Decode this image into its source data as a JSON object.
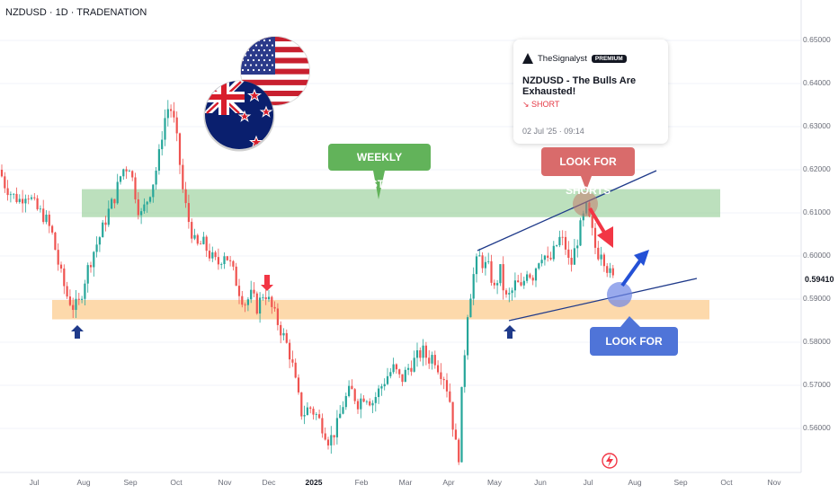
{
  "header": {
    "symbol_title": "NZDUSD · 1D · TRADENATION"
  },
  "idea_card": {
    "author": "TheSignalyst",
    "badge": "PREMIUM",
    "title": "NZDUSD - The Bulls Are Exhausted!",
    "direction": "↘ SHORT",
    "date": "02 Jul '25 · 09:14"
  },
  "annotations": {
    "weekly_resistance": "WEEKLY RESISTANCE",
    "look_for_shorts": "LOOK FOR SHORTS",
    "look_for_longs": "LOOK FOR LONGS"
  },
  "chart_data": {
    "type": "candlestick",
    "y_ticks": [
      "0.65000",
      "0.64000",
      "0.63000",
      "0.62000",
      "0.61000",
      "0.60000",
      "0.59000",
      "0.58000",
      "0.57000",
      "0.56000"
    ],
    "current_price": "0.59410",
    "x_labels": [
      "Jul",
      "Aug",
      "Sep",
      "Oct",
      "Nov",
      "Dec",
      "2025",
      "Feb",
      "Mar",
      "Apr",
      "May",
      "Jun",
      "Jul",
      "Aug",
      "Sep",
      "Oct",
      "Nov"
    ],
    "ylim": [
      0.551,
      0.652
    ],
    "resistance_zone": [
      0.609,
      0.6155
    ],
    "support_zone": [
      0.5853,
      0.5898
    ],
    "colors": {
      "up": "#26a69a",
      "down": "#ef5350",
      "resistance": "#a5d6a7",
      "support": "#fcd096",
      "trendline": "#1f3a8a"
    },
    "path": [
      [
        0,
        0.62
      ],
      [
        4,
        0.617
      ],
      [
        14,
        0.614
      ],
      [
        22,
        0.613
      ],
      [
        30,
        0.615
      ],
      [
        40,
        0.611
      ],
      [
        50,
        0.609
      ],
      [
        58,
        0.605
      ],
      [
        66,
        0.597
      ],
      [
        74,
        0.591
      ],
      [
        82,
        0.588
      ],
      [
        88,
        0.589
      ],
      [
        96,
        0.596
      ],
      [
        104,
        0.601
      ],
      [
        112,
        0.605
      ],
      [
        120,
        0.61
      ],
      [
        128,
        0.614
      ],
      [
        136,
        0.62
      ],
      [
        144,
        0.621
      ],
      [
        150,
        0.615
      ],
      [
        156,
        0.609
      ],
      [
        162,
        0.612
      ],
      [
        170,
        0.617
      ],
      [
        176,
        0.622
      ],
      [
        182,
        0.631
      ],
      [
        188,
        0.635
      ],
      [
        192,
        0.633
      ],
      [
        198,
        0.625
      ],
      [
        204,
        0.614
      ],
      [
        210,
        0.608
      ],
      [
        218,
        0.602
      ],
      [
        226,
        0.603
      ],
      [
        234,
        0.6
      ],
      [
        242,
        0.598
      ],
      [
        250,
        0.601
      ],
      [
        258,
        0.597
      ],
      [
        266,
        0.592
      ],
      [
        272,
        0.589
      ],
      [
        280,
        0.591
      ],
      [
        286,
        0.588
      ],
      [
        294,
        0.592
      ],
      [
        300,
        0.589
      ],
      [
        306,
        0.586
      ],
      [
        312,
        0.583
      ],
      [
        318,
        0.58
      ],
      [
        324,
        0.576
      ],
      [
        330,
        0.569
      ],
      [
        336,
        0.563
      ],
      [
        344,
        0.565
      ],
      [
        352,
        0.563
      ],
      [
        360,
        0.56
      ],
      [
        366,
        0.557
      ],
      [
        374,
        0.56
      ],
      [
        382,
        0.566
      ],
      [
        390,
        0.569
      ],
      [
        398,
        0.566
      ],
      [
        406,
        0.568
      ],
      [
        414,
        0.566
      ],
      [
        422,
        0.569
      ],
      [
        430,
        0.572
      ],
      [
        438,
        0.574
      ],
      [
        446,
        0.571
      ],
      [
        454,
        0.574
      ],
      [
        462,
        0.576
      ],
      [
        470,
        0.578
      ],
      [
        476,
        0.576
      ],
      [
        482,
        0.577
      ],
      [
        488,
        0.574
      ],
      [
        494,
        0.572
      ],
      [
        500,
        0.567
      ],
      [
        506,
        0.557
      ],
      [
        510,
        0.553
      ],
      [
        514,
        0.57
      ],
      [
        520,
        0.587
      ],
      [
        526,
        0.595
      ],
      [
        532,
        0.6
      ],
      [
        538,
        0.598
      ],
      [
        544,
        0.597
      ],
      [
        550,
        0.592
      ],
      [
        556,
        0.597
      ],
      [
        562,
        0.59
      ],
      [
        568,
        0.591
      ],
      [
        574,
        0.594
      ],
      [
        580,
        0.592
      ],
      [
        586,
        0.597
      ],
      [
        592,
        0.595
      ],
      [
        598,
        0.599
      ],
      [
        604,
        0.601
      ],
      [
        610,
        0.598
      ],
      [
        616,
        0.601
      ],
      [
        622,
        0.604
      ],
      [
        628,
        0.603
      ],
      [
        634,
        0.597
      ],
      [
        640,
        0.602
      ],
      [
        646,
        0.607
      ],
      [
        652,
        0.611
      ],
      [
        658,
        0.606
      ],
      [
        664,
        0.6
      ],
      [
        668,
        0.602
      ],
      [
        674,
        0.598
      ],
      [
        680,
        0.595
      ],
      [
        684,
        0.5941
      ]
    ]
  }
}
